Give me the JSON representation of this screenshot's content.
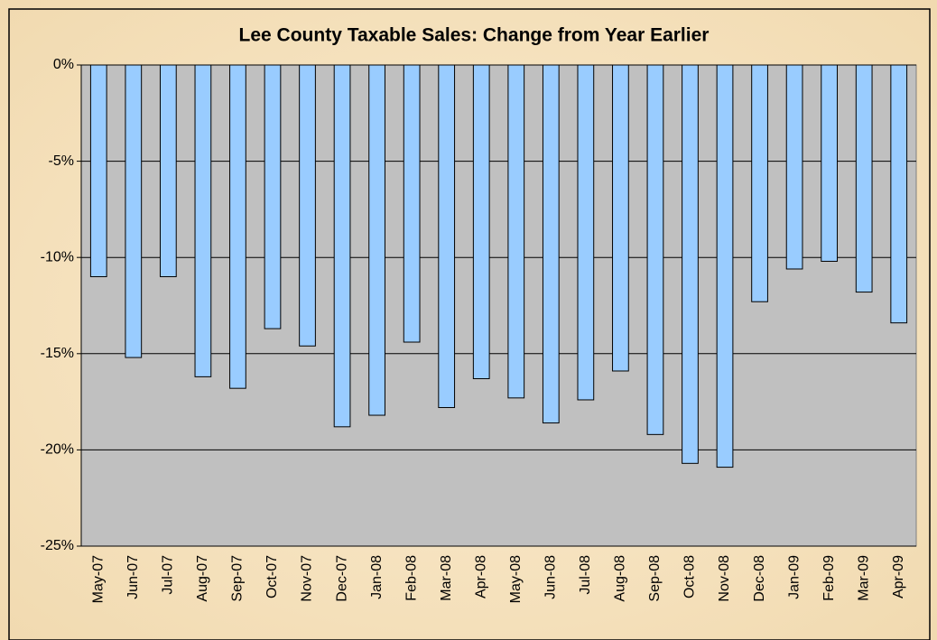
{
  "chart_data": {
    "type": "bar",
    "title": "Lee County Taxable Sales: Change from Year Earlier",
    "categories": [
      "May-07",
      "Jun-07",
      "Jul-07",
      "Aug-07",
      "Sep-07",
      "Oct-07",
      "Nov-07",
      "Dec-07",
      "Jan-08",
      "Feb-08",
      "Mar-08",
      "Apr-08",
      "May-08",
      "Jun-08",
      "Jul-08",
      "Aug-08",
      "Sep-08",
      "Oct-08",
      "Nov-08",
      "Dec-08",
      "Jan-09",
      "Feb-09",
      "Mar-09",
      "Apr-09"
    ],
    "values": [
      -11.0,
      -15.2,
      -11.0,
      -16.2,
      -16.8,
      -13.7,
      -14.6,
      -18.8,
      -18.2,
      -14.4,
      -17.8,
      -16.3,
      -17.3,
      -18.6,
      -17.4,
      -15.9,
      -19.2,
      -20.7,
      -20.9,
      -12.3,
      -10.6,
      -10.2,
      -11.8,
      -13.4
    ],
    "color": "#99ccff",
    "ylim": [
      -25,
      0
    ],
    "yticks": [
      {
        "value": 0,
        "label": "0%"
      },
      {
        "value": -5,
        "label": "-5%"
      },
      {
        "value": -10,
        "label": "-10%"
      },
      {
        "value": -15,
        "label": "-15%"
      },
      {
        "value": -20,
        "label": "-20%"
      },
      {
        "value": -25,
        "label": "-25%"
      }
    ],
    "grid": true
  }
}
